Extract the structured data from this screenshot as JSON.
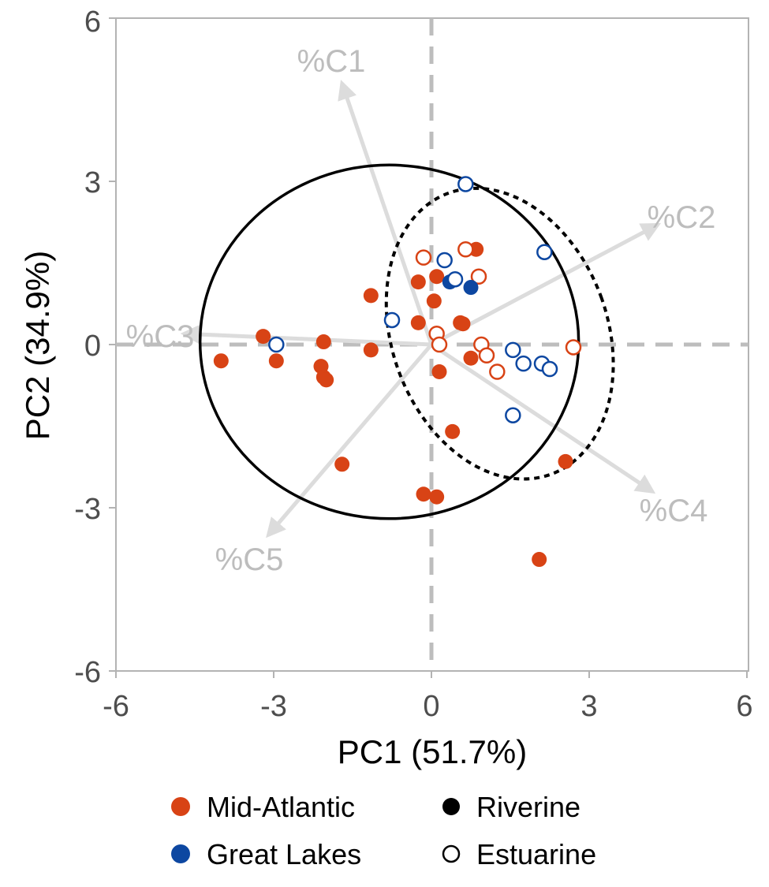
{
  "chart_data": {
    "type": "scatter",
    "title": "",
    "xlabel": "PC1 (51.7%)",
    "ylabel": "PC2 (34.9%)",
    "xlim": [
      -6,
      6
    ],
    "ylim": [
      -6,
      6
    ],
    "xticks": [
      "-6",
      "-3",
      "0",
      "3",
      "6"
    ],
    "yticks": [
      "-6",
      "-3",
      "0",
      "3",
      "6"
    ],
    "grid": false,
    "reference_lines": {
      "x": 0,
      "y": 0,
      "style": "dashed",
      "color": "#bdbdbd"
    },
    "colors": {
      "Mid-Atlantic": "#d84315",
      "Great Lakes": "#0d47a1",
      "loadings": "#bdbdbd"
    },
    "loadings": [
      {
        "label": "%C1",
        "x": -1.7,
        "y": 4.8
      },
      {
        "label": "%C2",
        "x": 4.3,
        "y": 2.2
      },
      {
        "label": "%C3",
        "x": -4.7,
        "y": 0.2
      },
      {
        "label": "%C4",
        "x": 4.2,
        "y": -2.7
      },
      {
        "label": "%C5",
        "x": -3.1,
        "y": -3.5
      }
    ],
    "ellipses": [
      {
        "group": "Riverine",
        "style": "solid",
        "cx": -0.8,
        "cy": 0.05,
        "rx": 3.6,
        "ry": 3.25,
        "rotation_deg": 0
      },
      {
        "group": "Estuarine",
        "style": "dotted",
        "cx": 1.3,
        "cy": 0.2,
        "rx": 2.05,
        "ry": 2.75,
        "rotation_deg": -20
      }
    ],
    "series": [
      {
        "region": "Mid-Atlantic",
        "type": "Riverine",
        "points": [
          [
            -4.0,
            -0.3
          ],
          [
            -3.2,
            0.15
          ],
          [
            -2.95,
            -0.3
          ],
          [
            -2.05,
            0.05
          ],
          [
            -2.1,
            -0.4
          ],
          [
            -2.05,
            -0.6
          ],
          [
            -2.0,
            -0.65
          ],
          [
            -1.15,
            0.9
          ],
          [
            -1.15,
            -0.1
          ],
          [
            -0.25,
            1.15
          ],
          [
            -0.25,
            0.4
          ],
          [
            0.1,
            1.25
          ],
          [
            0.05,
            0.8
          ],
          [
            0.55,
            0.4
          ],
          [
            0.6,
            0.38
          ],
          [
            0.85,
            1.75
          ],
          [
            0.75,
            -0.25
          ],
          [
            0.15,
            -0.5
          ],
          [
            0.4,
            -1.6
          ],
          [
            -1.7,
            -2.2
          ],
          [
            -0.15,
            -2.75
          ],
          [
            0.1,
            -2.8
          ],
          [
            2.55,
            -2.15
          ],
          [
            2.05,
            -3.95
          ]
        ]
      },
      {
        "region": "Mid-Atlantic",
        "type": "Estuarine",
        "points": [
          [
            -0.15,
            1.6
          ],
          [
            0.65,
            1.75
          ],
          [
            0.9,
            1.25
          ],
          [
            0.1,
            0.2
          ],
          [
            0.15,
            0.0
          ],
          [
            0.95,
            0.0
          ],
          [
            1.05,
            -0.2
          ],
          [
            1.25,
            -0.5
          ],
          [
            2.7,
            -0.05
          ]
        ]
      },
      {
        "region": "Great Lakes",
        "type": "Riverine",
        "points": [
          [
            0.35,
            1.15
          ],
          [
            0.75,
            1.05
          ]
        ]
      },
      {
        "region": "Great Lakes",
        "type": "Estuarine",
        "points": [
          [
            -2.95,
            0.0
          ],
          [
            -0.75,
            0.45
          ],
          [
            0.25,
            1.55
          ],
          [
            0.45,
            1.2
          ],
          [
            0.65,
            2.95
          ],
          [
            2.15,
            1.7
          ],
          [
            1.55,
            -0.1
          ],
          [
            1.75,
            -0.35
          ],
          [
            2.1,
            -0.35
          ],
          [
            2.25,
            -0.45
          ],
          [
            1.55,
            -1.3
          ]
        ]
      }
    ]
  },
  "legend": {
    "region": [
      {
        "label": "Mid-Atlantic",
        "color": "#d84315"
      },
      {
        "label": "Great Lakes",
        "color": "#0d47a1"
      }
    ],
    "type": [
      {
        "label": "Riverine",
        "marker": "filled"
      },
      {
        "label": "Estuarine",
        "marker": "open"
      }
    ]
  }
}
